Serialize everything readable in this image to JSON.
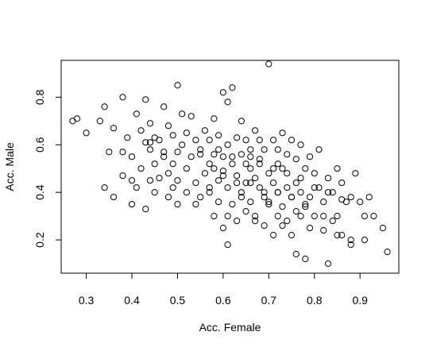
{
  "chart_data": {
    "type": "scatter",
    "title": "",
    "xlabel": "Acc. Female",
    "ylabel": "Acc. Male",
    "xlim": [
      0.245,
      0.985
    ],
    "ylim": [
      0.06,
      0.955
    ],
    "xticks": [
      0.3,
      0.4,
      0.5,
      0.6,
      0.7,
      0.8,
      0.9
    ],
    "yticks": [
      0.2,
      0.4,
      0.6,
      0.8
    ],
    "grid": false,
    "legend": "none",
    "marker_color": "#000000",
    "series": [
      {
        "x": [
          0.27,
          0.28,
          0.3,
          0.33,
          0.34,
          0.34,
          0.35,
          0.36,
          0.36,
          0.38,
          0.38,
          0.38,
          0.39,
          0.4,
          0.4,
          0.41,
          0.41,
          0.42,
          0.42,
          0.43,
          0.43,
          0.43,
          0.44,
          0.44,
          0.44,
          0.45,
          0.45,
          0.45,
          0.46,
          0.46,
          0.47,
          0.47,
          0.48,
          0.48,
          0.48,
          0.49,
          0.49,
          0.49,
          0.5,
          0.5,
          0.5,
          0.5,
          0.51,
          0.51,
          0.52,
          0.52,
          0.53,
          0.53,
          0.54,
          0.54,
          0.55,
          0.55,
          0.56,
          0.56,
          0.57,
          0.57,
          0.57,
          0.58,
          0.58,
          0.58,
          0.59,
          0.59,
          0.59,
          0.6,
          0.6,
          0.6,
          0.6,
          0.61,
          0.61,
          0.61,
          0.61,
          0.62,
          0.62,
          0.62,
          0.63,
          0.63,
          0.63,
          0.64,
          0.64,
          0.64,
          0.65,
          0.65,
          0.65,
          0.66,
          0.66,
          0.66,
          0.67,
          0.67,
          0.67,
          0.68,
          0.68,
          0.68,
          0.69,
          0.69,
          0.69,
          0.7,
          0.7,
          0.7,
          0.71,
          0.71,
          0.71,
          0.72,
          0.72,
          0.72,
          0.73,
          0.73,
          0.73,
          0.74,
          0.74,
          0.74,
          0.75,
          0.75,
          0.75,
          0.76,
          0.76,
          0.76,
          0.77,
          0.77,
          0.77,
          0.78,
          0.78,
          0.78,
          0.79,
          0.79,
          0.8,
          0.8,
          0.81,
          0.81,
          0.82,
          0.82,
          0.83,
          0.83,
          0.84,
          0.84,
          0.85,
          0.85,
          0.86,
          0.86,
          0.87,
          0.88,
          0.88,
          0.89,
          0.9,
          0.91,
          0.92,
          0.93,
          0.95,
          0.96,
          0.4,
          0.44,
          0.47,
          0.52,
          0.55,
          0.58,
          0.62,
          0.65,
          0.68,
          0.71,
          0.74,
          0.77,
          0.8,
          0.83,
          0.86,
          0.6,
          0.63,
          0.66,
          0.69,
          0.72,
          0.75,
          0.78,
          0.57,
          0.64,
          0.7,
          0.76,
          0.82,
          0.54,
          0.61,
          0.67,
          0.73,
          0.79,
          0.85,
          0.88,
          0.91,
          0.59,
          0.66,
          0.72
        ],
        "y": [
          0.7,
          0.71,
          0.65,
          0.7,
          0.76,
          0.42,
          0.57,
          0.67,
          0.38,
          0.8,
          0.57,
          0.47,
          0.63,
          0.35,
          0.55,
          0.73,
          0.42,
          0.66,
          0.5,
          0.79,
          0.61,
          0.33,
          0.58,
          0.69,
          0.45,
          0.52,
          0.4,
          0.63,
          0.62,
          0.46,
          0.76,
          0.55,
          0.68,
          0.48,
          0.38,
          0.64,
          0.52,
          0.42,
          0.85,
          0.57,
          0.45,
          0.35,
          0.73,
          0.6,
          0.5,
          0.4,
          0.72,
          0.55,
          0.62,
          0.44,
          0.56,
          0.38,
          0.66,
          0.48,
          0.52,
          0.42,
          0.62,
          0.71,
          0.5,
          0.3,
          0.64,
          0.45,
          0.36,
          0.82,
          0.55,
          0.47,
          0.25,
          0.78,
          0.6,
          0.42,
          0.18,
          0.84,
          0.52,
          0.35,
          0.63,
          0.47,
          0.28,
          0.7,
          0.56,
          0.4,
          0.62,
          0.44,
          0.32,
          0.58,
          0.5,
          0.36,
          0.66,
          0.46,
          0.3,
          0.54,
          0.42,
          0.62,
          0.58,
          0.38,
          0.26,
          0.94,
          0.48,
          0.35,
          0.62,
          0.44,
          0.22,
          0.58,
          0.4,
          0.3,
          0.65,
          0.5,
          0.34,
          0.56,
          0.42,
          0.28,
          0.62,
          0.38,
          0.22,
          0.54,
          0.44,
          0.14,
          0.6,
          0.4,
          0.3,
          0.5,
          0.34,
          0.12,
          0.55,
          0.38,
          0.48,
          0.3,
          0.58,
          0.42,
          0.36,
          0.24,
          0.46,
          0.1,
          0.4,
          0.28,
          0.5,
          0.3,
          0.22,
          0.44,
          0.36,
          0.38,
          0.2,
          0.48,
          0.36,
          0.3,
          0.38,
          0.3,
          0.25,
          0.15,
          0.45,
          0.61,
          0.57,
          0.65,
          0.58,
          0.56,
          0.55,
          0.52,
          0.52,
          0.5,
          0.48,
          0.46,
          0.42,
          0.4,
          0.37,
          0.49,
          0.44,
          0.44,
          0.4,
          0.4,
          0.38,
          0.35,
          0.4,
          0.38,
          0.36,
          0.32,
          0.3,
          0.35,
          0.3,
          0.28,
          0.26,
          0.25,
          0.22,
          0.18,
          0.2,
          0.58,
          0.55,
          0.52
        ]
      }
    ]
  }
}
